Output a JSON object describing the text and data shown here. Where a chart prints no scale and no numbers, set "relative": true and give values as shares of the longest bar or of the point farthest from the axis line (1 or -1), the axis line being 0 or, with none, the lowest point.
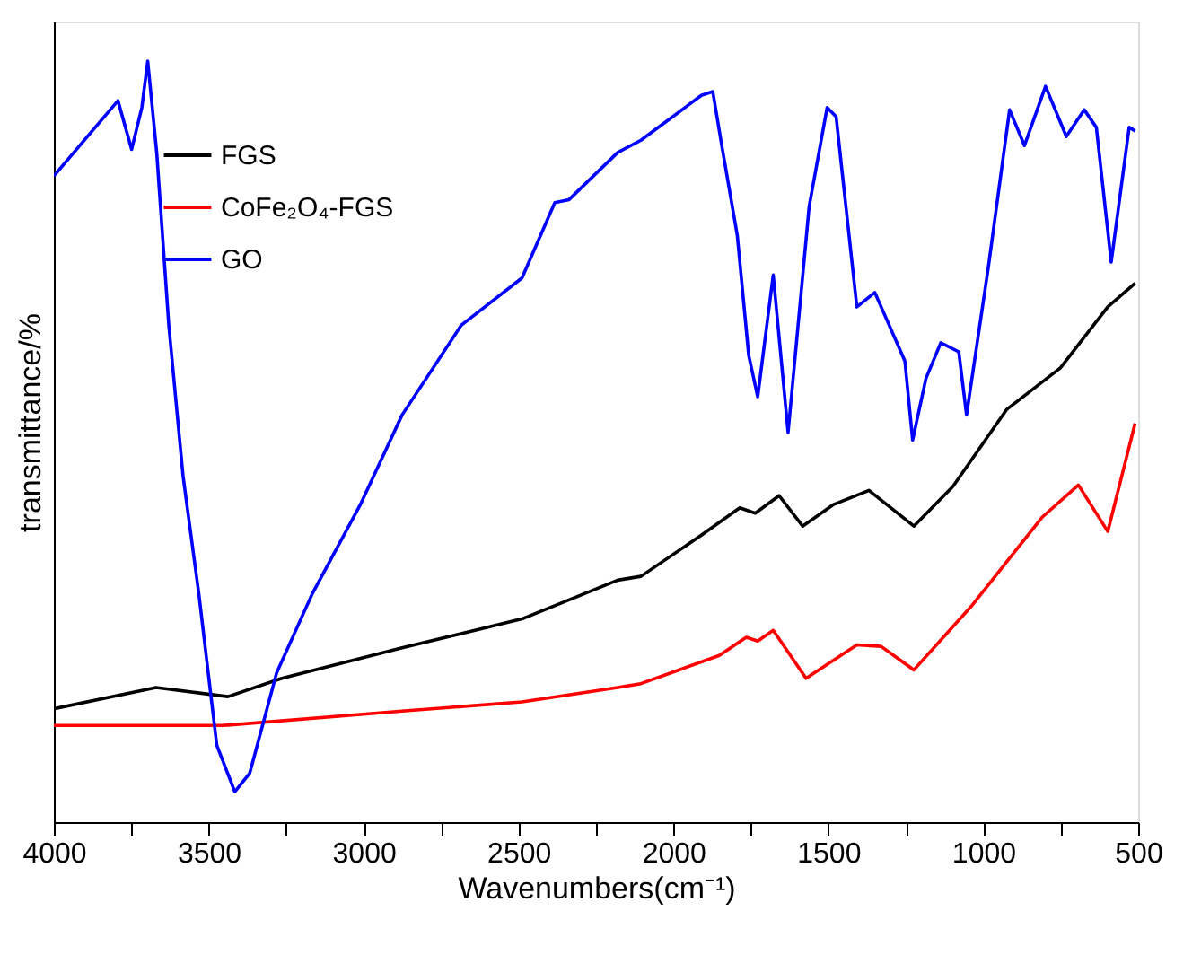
{
  "chart_data": {
    "type": "line",
    "relative": true,
    "xlabel": "Wavenumbers(cm⁻¹)",
    "ylabel": "transmittance/%",
    "xlim": [
      4000,
      500
    ],
    "xticks": [
      4000,
      {
        "value": 3750,
        "label": null
      },
      3500,
      {
        "value": 3250,
        "label": null
      },
      3000,
      {
        "value": 2750,
        "label": null
      },
      2500,
      {
        "value": 2250,
        "label": null
      },
      2000,
      {
        "value": 1750,
        "label": null
      },
      1500,
      {
        "value": 1250,
        "label": null
      },
      1000,
      {
        "value": 750,
        "label": null
      },
      500
    ],
    "grid": false,
    "legend": "top left",
    "line_style": "solid",
    "marker": "none",
    "series": [
      {
        "name": "FGS",
        "color": "#000000",
        "x": [
          4000,
          3670,
          3438,
          3264,
          2876,
          2489,
          2180,
          2105,
          1910,
          1786,
          1736,
          1659,
          1583,
          1485,
          1369,
          1224,
          1098,
          925,
          751,
          598,
          510
        ],
        "values": [
          0.149,
          0.177,
          0.165,
          0.189,
          0.229,
          0.267,
          0.318,
          0.323,
          0.377,
          0.413,
          0.406,
          0.429,
          0.389,
          0.417,
          0.436,
          0.389,
          0.441,
          0.542,
          0.597,
          0.677,
          0.708
        ]
      },
      {
        "name": "CoFe₂O₄-FGS",
        "color": "#ff0000",
        "x": [
          4000,
          3455,
          2876,
          2489,
          2180,
          2105,
          1852,
          1765,
          1728,
          1678,
          1572,
          1408,
          1330,
          1224,
          1040,
          809,
          693,
          598,
          510
        ],
        "values": [
          0.127,
          0.127,
          0.146,
          0.158,
          0.177,
          0.182,
          0.219,
          0.243,
          0.238,
          0.252,
          0.189,
          0.233,
          0.231,
          0.2,
          0.283,
          0.401,
          0.443,
          0.382,
          0.524
        ]
      },
      {
        "name": "GO",
        "color": "#0000ff",
        "x": [
          4000,
          3793,
          3749,
          3716,
          3697,
          3668,
          3629,
          3583,
          3532,
          3474,
          3416,
          3368,
          3281,
          3166,
          3011,
          2876,
          2685,
          2489,
          2383,
          2337,
          2180,
          2105,
          1910,
          1873,
          1844,
          1794,
          1757,
          1728,
          1678,
          1630,
          1562,
          1504,
          1475,
          1408,
          1350,
          1253,
          1228,
          1185,
          1137,
          1079,
          1054,
          983,
          915,
          867,
          799,
          732,
          674,
          635,
          587,
          529,
          510
        ],
        "values": [
          0.849,
          0.948,
          0.884,
          0.939,
          1.0,
          0.88,
          0.653,
          0.455,
          0.3,
          0.101,
          0.04,
          0.064,
          0.196,
          0.3,
          0.417,
          0.535,
          0.653,
          0.715,
          0.814,
          0.818,
          0.88,
          0.896,
          0.955,
          0.96,
          0.889,
          0.771,
          0.613,
          0.559,
          0.719,
          0.512,
          0.809,
          0.939,
          0.927,
          0.677,
          0.696,
          0.606,
          0.502,
          0.583,
          0.63,
          0.618,
          0.535,
          0.731,
          0.936,
          0.889,
          0.967,
          0.901,
          0.936,
          0.913,
          0.736,
          0.913,
          0.908
        ]
      }
    ]
  }
}
